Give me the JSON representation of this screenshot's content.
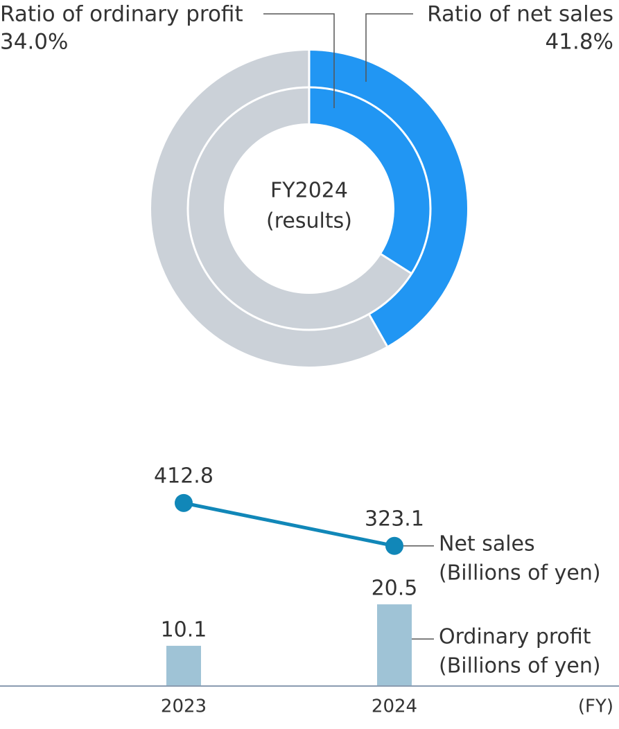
{
  "chart_data": [
    {
      "type": "donut",
      "center_label": [
        "FY2024",
        "(results)"
      ],
      "remainder_color": "#cbd1d8",
      "series": [
        {
          "name": "Ratio of net sales",
          "values": [
            41.8
          ],
          "value_labels": [
            "41.8%"
          ],
          "color": "#2196f3"
        },
        {
          "name": "Ratio of ordinary profit",
          "values": [
            34.0
          ],
          "value_labels": [
            "34.0%"
          ],
          "color": "#2196f3"
        }
      ],
      "ylim": [
        0,
        100
      ]
    },
    {
      "type": "combo",
      "categories": [
        "2023",
        "2024"
      ],
      "xlabel": "(FY)",
      "ylim": [
        0,
        60
      ],
      "y2lim": [
        30,
        530
      ],
      "series": [
        {
          "name": "Net sales",
          "unit": "(Billions of yen)",
          "type": "line",
          "axis": "y2",
          "color": "#1187b8",
          "values": [
            412.8,
            323.1
          ]
        },
        {
          "name": "Ordinary profit",
          "unit": "(Billions of yen)",
          "type": "bar",
          "color": "#9fc3d6",
          "values": [
            10.1,
            20.5
          ]
        }
      ]
    }
  ]
}
